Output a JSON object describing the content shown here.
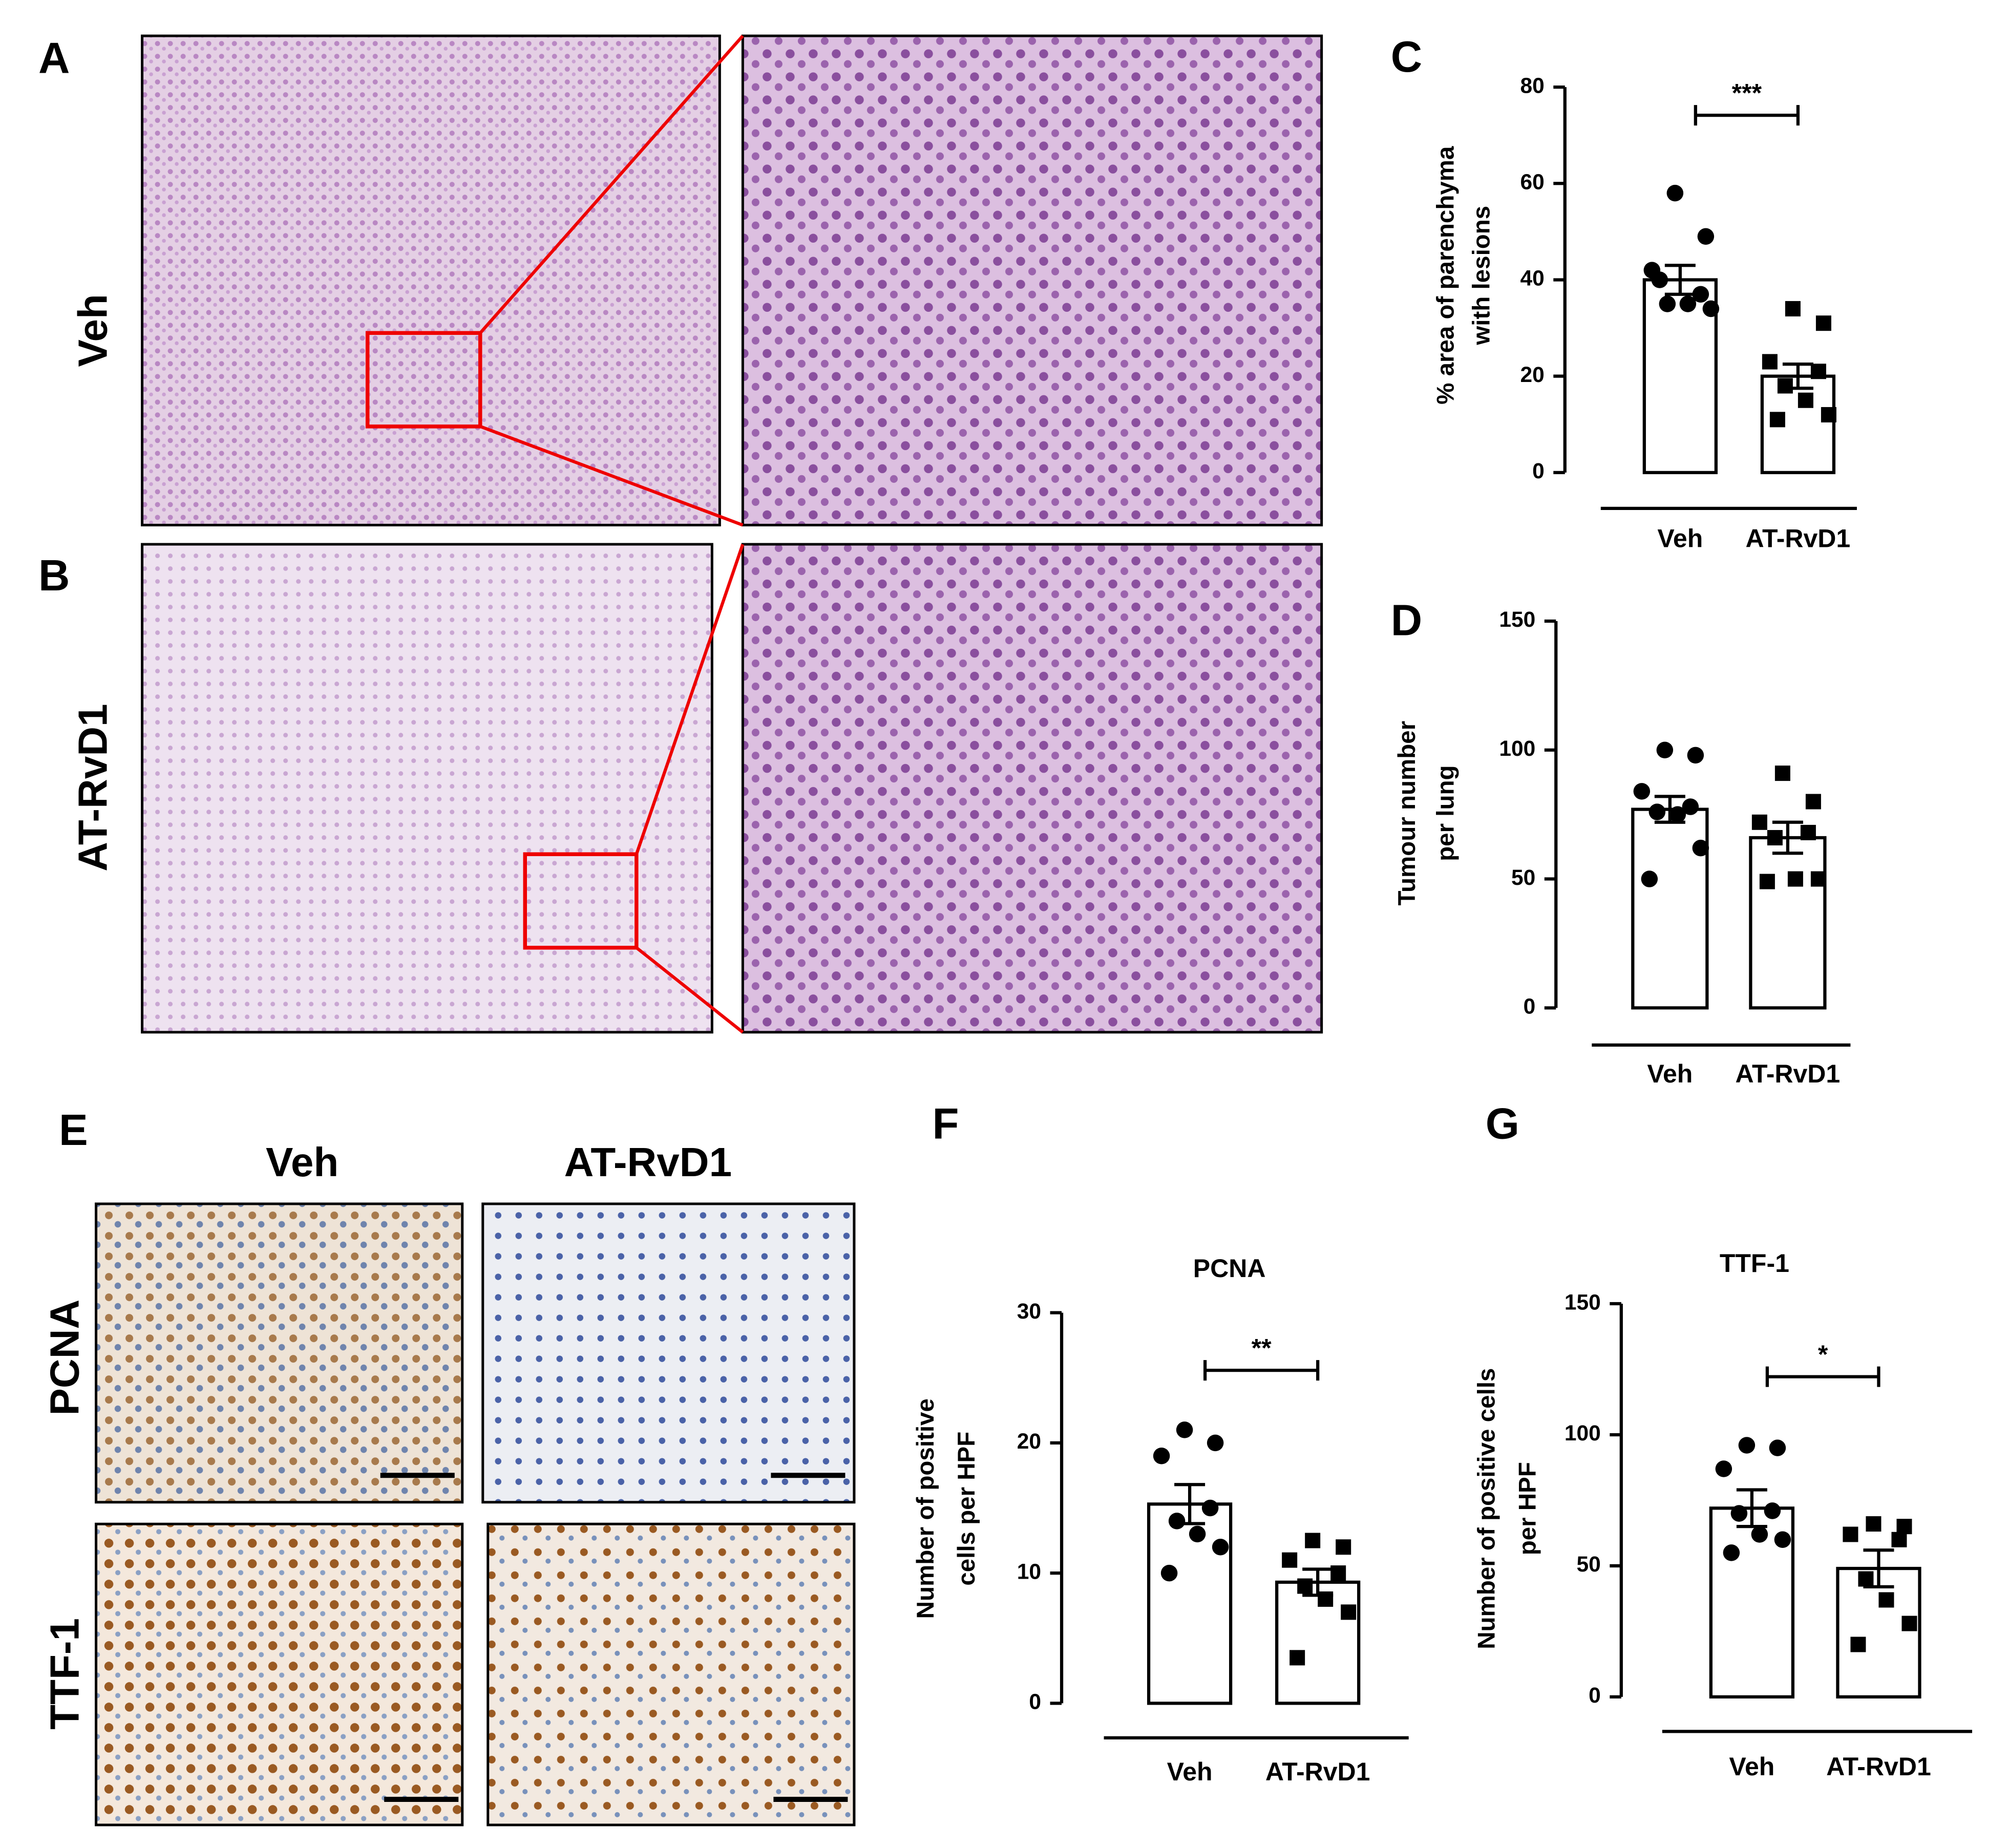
{
  "micrographs": {
    "A": {
      "letter": "A",
      "row_label": "Veh"
    },
    "B": {
      "letter": "B",
      "row_label": "AT-RvD1"
    },
    "E": {
      "letter": "E",
      "columns": [
        "Veh",
        "AT-RvD1"
      ],
      "rows": [
        "PCNA",
        "TTF-1"
      ]
    }
  },
  "chart_data": [
    {
      "type": "bar",
      "panel": "C",
      "ylabel": [
        "% area of parenchyma",
        "with lesions"
      ],
      "categories": [
        "Veh",
        "AT-RvD1"
      ],
      "values": [
        40,
        20
      ],
      "errors": [
        3,
        2.5
      ],
      "points": [
        [
          58,
          49,
          42,
          37,
          35,
          35,
          34,
          40
        ],
        [
          34,
          31,
          23,
          21,
          18,
          15,
          12,
          11
        ]
      ],
      "markers": [
        "circle",
        "square"
      ],
      "color": "#ffffff",
      "ylim": [
        0,
        80
      ],
      "yticks": [
        0,
        20,
        40,
        60,
        80
      ],
      "annotation": "***"
    },
    {
      "type": "bar",
      "panel": "D",
      "ylabel": [
        "Tumour number",
        "per lung"
      ],
      "categories": [
        "Veh",
        "AT-RvD1"
      ],
      "values": [
        77,
        66
      ],
      "errors": [
        5,
        6
      ],
      "points": [
        [
          100,
          98,
          84,
          78,
          76,
          75,
          62,
          50
        ],
        [
          91,
          80,
          72,
          68,
          66,
          50,
          50,
          49
        ]
      ],
      "markers": [
        "circle",
        "square"
      ],
      "color": "#ffffff",
      "ylim": [
        0,
        150
      ],
      "yticks": [
        0,
        50,
        100,
        150
      ]
    },
    {
      "type": "bar",
      "panel": "F",
      "title": "PCNA",
      "ylabel": [
        "Number of positive",
        "cells per HPF"
      ],
      "categories": [
        "Veh",
        "AT-RvD1"
      ],
      "values": [
        15.3,
        9.3
      ],
      "errors": [
        1.5,
        1
      ],
      "points": [
        [
          21,
          20,
          19,
          15,
          14,
          13,
          12,
          10
        ],
        [
          12.5,
          12,
          11,
          10,
          9,
          8,
          7,
          3.5
        ]
      ],
      "markers": [
        "circle",
        "square"
      ],
      "color": "#ffffff",
      "ylim": [
        0,
        30
      ],
      "yticks": [
        0,
        10,
        20,
        30
      ],
      "annotation": "**"
    },
    {
      "type": "bar",
      "panel": "G",
      "title": "TTF-1",
      "ylabel": [
        "Number of positive cells",
        "per HPF"
      ],
      "categories": [
        "Veh",
        "AT-RvD1"
      ],
      "values": [
        72,
        49
      ],
      "errors": [
        7,
        7
      ],
      "points": [
        [
          96,
          95,
          87,
          71,
          70,
          62,
          60,
          55
        ],
        [
          66,
          65,
          62,
          60,
          45,
          37,
          28,
          20
        ]
      ],
      "markers": [
        "circle",
        "square"
      ],
      "color": "#ffffff",
      "ylim": [
        0,
        150
      ],
      "yticks": [
        0,
        50,
        100,
        150
      ],
      "annotation": "*"
    }
  ]
}
